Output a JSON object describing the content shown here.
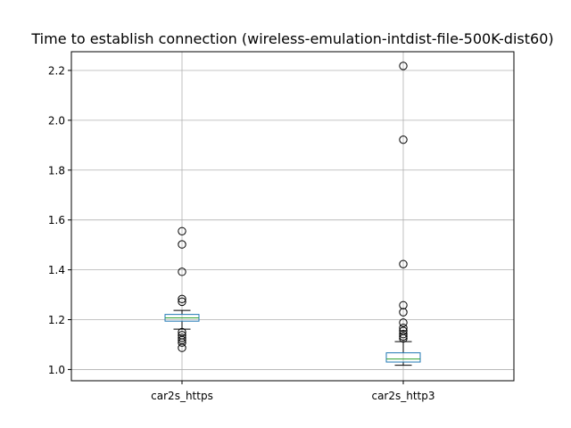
{
  "chart_data": {
    "type": "box",
    "title": "Time to establish connection (wireless-emulation-intdist-file-500K-dist60)",
    "xlabel": "",
    "ylabel": "",
    "categories": [
      "car2s_https",
      "car2s_http3"
    ],
    "ylim": [
      0.955,
      2.275
    ],
    "yticks": [
      1.0,
      1.2,
      1.4,
      1.6,
      1.8,
      2.0,
      2.2
    ],
    "ytick_labels": [
      "1.0",
      "1.2",
      "1.4",
      "1.6",
      "1.8",
      "2.0",
      "2.2"
    ],
    "grid": true,
    "colors": {
      "box": "#1f77b4",
      "median": "#2ca02c",
      "whisker": "#000000",
      "grid": "#b0b0b0"
    },
    "boxes": [
      {
        "name": "car2s_https",
        "whisker_low": 1.162,
        "q1": 1.194,
        "median": 1.207,
        "q3": 1.221,
        "whisker_high": 1.237,
        "outliers": [
          1.555,
          1.502,
          1.392,
          1.283,
          1.272,
          1.15,
          1.138,
          1.127,
          1.118,
          1.108,
          1.087
        ]
      },
      {
        "name": "car2s_http3",
        "whisker_low": 1.017,
        "q1": 1.03,
        "median": 1.042,
        "q3": 1.067,
        "whisker_high": 1.112,
        "outliers": [
          2.218,
          1.922,
          1.423,
          1.258,
          1.23,
          1.188,
          1.167,
          1.155,
          1.142,
          1.133,
          1.125
        ]
      }
    ]
  }
}
